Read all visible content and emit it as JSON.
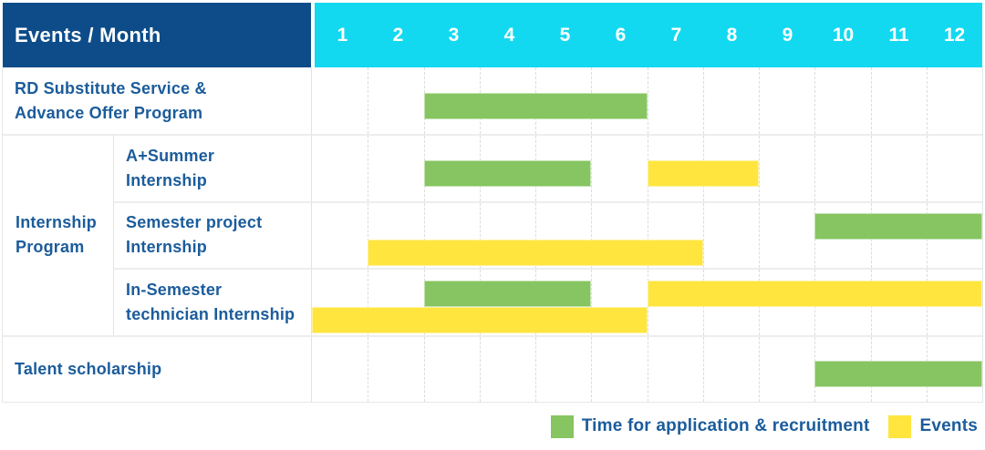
{
  "colors": {
    "header_bg": "#0D4C89",
    "month_strip_bg": "#12D9F0",
    "green": "#86C561",
    "yellow": "#FFE53E",
    "label_text": "#1B5C9B"
  },
  "header": {
    "corner_label": "Events / Month",
    "months": [
      "1",
      "2",
      "3",
      "4",
      "5",
      "6",
      "7",
      "8",
      "9",
      "10",
      "11",
      "12"
    ]
  },
  "group": {
    "id": "internship-program",
    "label": "Internship Program",
    "label_lines": [
      "Internship",
      "Program"
    ]
  },
  "rows": [
    {
      "id": "rd-substitute",
      "type": "full",
      "label": "RD Substitute Service & Advance Offer Program",
      "label_lines": [
        "RD Substitute Service &",
        "Advance Offer Program"
      ],
      "bars": [
        {
          "color": "green",
          "start_month": 3,
          "end_month": 6,
          "track": "single"
        }
      ]
    },
    {
      "id": "a-plus-summer-internship",
      "type": "sub",
      "label": "A+Summer Internship",
      "label_lines": [
        "A+Summer",
        "Internship"
      ],
      "bars": [
        {
          "color": "green",
          "start_month": 3,
          "end_month": 5,
          "track": "single"
        },
        {
          "color": "yellow",
          "start_month": 7,
          "end_month": 8,
          "track": "single"
        }
      ]
    },
    {
      "id": "semester-project-internship",
      "type": "sub",
      "label": "Semester project Internship",
      "label_lines": [
        "Semester project",
        "Internship"
      ],
      "bars": [
        {
          "color": "green",
          "start_month": 10,
          "end_month": 12,
          "track": "top"
        },
        {
          "color": "yellow",
          "start_month": 2,
          "end_month": 7,
          "track": "bottom"
        }
      ]
    },
    {
      "id": "in-semester-technician-internship",
      "type": "sub",
      "label": "In-Semester technician Internship",
      "label_lines": [
        "In-Semester",
        "technician Internship"
      ],
      "bars": [
        {
          "color": "green",
          "start_month": 3,
          "end_month": 5,
          "track": "top"
        },
        {
          "color": "yellow",
          "start_month": 7,
          "end_month": 12,
          "track": "top"
        },
        {
          "color": "yellow",
          "start_month": 1,
          "end_month": 6,
          "track": "bottom"
        }
      ]
    },
    {
      "id": "talent-scholarship",
      "type": "full",
      "label": "Talent scholarship",
      "label_lines": [
        "Talent scholarship"
      ],
      "bars": [
        {
          "color": "green",
          "start_month": 10,
          "end_month": 12,
          "track": "single"
        }
      ]
    }
  ],
  "legend": [
    {
      "color": "green",
      "label": "Time for application & recruitment"
    },
    {
      "color": "yellow",
      "label": "Events"
    }
  ],
  "chart_data": {
    "type": "bar",
    "subtype": "gantt-timeline",
    "title": "Events / Month",
    "xlabel": "Month",
    "x_ticks": [
      1,
      2,
      3,
      4,
      5,
      6,
      7,
      8,
      9,
      10,
      11,
      12
    ],
    "x_range": [
      1,
      12
    ],
    "grid": "dashed-vertical-month-lines",
    "legend_position": "bottom-right",
    "categories": [
      "RD Substitute Service & Advance Offer Program",
      "A+Summer Internship",
      "Semester project Internship",
      "In-Semester technician Internship",
      "Talent scholarship"
    ],
    "category_group": {
      "label": "Internship Program",
      "members": [
        "A+Summer Internship",
        "Semester project Internship",
        "In-Semester technician Internship"
      ]
    },
    "series": [
      {
        "name": "Time for application & recruitment",
        "color": "#86C561",
        "spans": [
          {
            "category": "RD Substitute Service & Advance Offer Program",
            "start_month": 3,
            "end_month": 6
          },
          {
            "category": "A+Summer Internship",
            "start_month": 3,
            "end_month": 5
          },
          {
            "category": "Semester project Internship",
            "start_month": 10,
            "end_month": 12
          },
          {
            "category": "In-Semester technician Internship",
            "start_month": 3,
            "end_month": 5
          },
          {
            "category": "Talent scholarship",
            "start_month": 10,
            "end_month": 12
          }
        ]
      },
      {
        "name": "Events",
        "color": "#FFE53E",
        "spans": [
          {
            "category": "A+Summer Internship",
            "start_month": 7,
            "end_month": 8
          },
          {
            "category": "Semester project Internship",
            "start_month": 2,
            "end_month": 7
          },
          {
            "category": "In-Semester technician Internship",
            "start_month": 7,
            "end_month": 12
          },
          {
            "category": "In-Semester technician Internship",
            "start_month": 1,
            "end_month": 6
          }
        ]
      }
    ]
  }
}
